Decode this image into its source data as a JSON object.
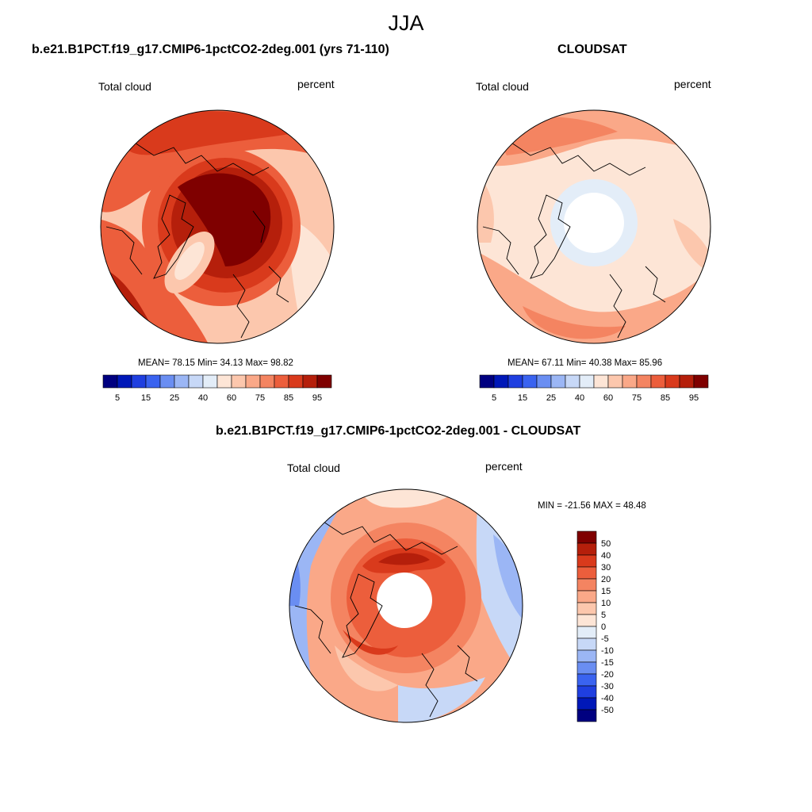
{
  "figure": {
    "season": "JJA"
  },
  "panels": [
    {
      "title": "b.e21.B1PCT.f19_g17.CMIP6-1pctCO2-2deg.001 (yrs 71-110)",
      "left_label": "Total cloud",
      "right_label": "percent",
      "stats": "MEAN=  78.15  Min=  34.13  Max=  98.82",
      "mean": 78.15,
      "min": 34.13,
      "max": 98.82,
      "polar_cap_missing": false
    },
    {
      "title": "CLOUDSAT",
      "left_label": "Total cloud",
      "right_label": "percent",
      "stats": "MEAN=  67.11  Min=  40.38  Max=  85.96",
      "mean": 67.11,
      "min": 40.38,
      "max": 85.96,
      "polar_cap_missing": true
    },
    {
      "title": "b.e21.B1PCT.f19_g17.CMIP6-1pctCO2-2deg.001 - CLOUDSAT",
      "left_label": "Total cloud",
      "right_label": "percent",
      "stats": "MIN = -21.56 MAX =  48.48",
      "min": -21.56,
      "max": 48.48,
      "polar_cap_missing": true
    }
  ],
  "colorbar_abs": {
    "colors": [
      "#000080",
      "#0018b8",
      "#1f3fe0",
      "#3a63f0",
      "#6a8ef2",
      "#9bb6f5",
      "#c7d8f7",
      "#e3edf8",
      "#fde5d6",
      "#fcc7ad",
      "#faa888",
      "#f48461",
      "#ec5e3c",
      "#d93a1c",
      "#b51f0b",
      "#7f0000"
    ],
    "tick_labels": [
      "5",
      "15",
      "25",
      "40",
      "60",
      "75",
      "85",
      "95"
    ]
  },
  "colorbar_diff": {
    "colors": [
      "#000080",
      "#0018b8",
      "#1f3fe0",
      "#3a63f0",
      "#6a8ef2",
      "#9bb6f5",
      "#c7d8f7",
      "#e3edf8",
      "#fde5d6",
      "#fcc7ad",
      "#faa888",
      "#f48461",
      "#ec5e3c",
      "#d93a1c",
      "#b51f0b",
      "#7f0000"
    ],
    "tick_labels": [
      "50",
      "40",
      "30",
      "20",
      "15",
      "10",
      "5",
      "0",
      "-5",
      "-10",
      "-15",
      "-20",
      "-30",
      "-40",
      "-50"
    ]
  }
}
